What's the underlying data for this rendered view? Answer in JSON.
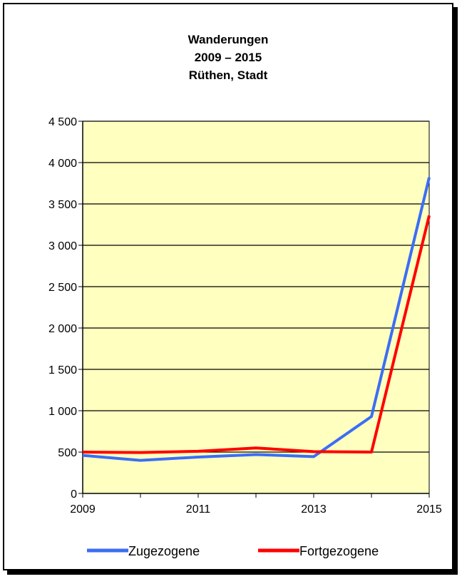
{
  "chart_data": {
    "type": "line",
    "title": [
      "Wanderungen",
      "2009 – 2015",
      "Rüthen, Stadt"
    ],
    "xlabel": "",
    "ylabel": "",
    "x": [
      2009,
      2010,
      2011,
      2012,
      2013,
      2014,
      2015
    ],
    "x_tick_labels": [
      "2009",
      "2011",
      "2013",
      "2015"
    ],
    "x_tick_values": [
      2009,
      2011,
      2013,
      2015
    ],
    "ylim": [
      0,
      4500
    ],
    "y_tick_values": [
      0,
      500,
      1000,
      1500,
      2000,
      2500,
      3000,
      3500,
      4000,
      4500
    ],
    "y_tick_labels": [
      "0",
      "500",
      "1 000",
      "1 500",
      "2 000",
      "2 500",
      "3 000",
      "3 500",
      "4 000",
      "4 500"
    ],
    "grid": "horizontal",
    "plot_background": "#ffffc0",
    "legend_position": "bottom",
    "series": [
      {
        "name": "Zugezogene",
        "color": "#3b6ef5",
        "values": [
          460,
          400,
          440,
          470,
          445,
          930,
          3820
        ]
      },
      {
        "name": "Fortgezogene",
        "color": "#ff0000",
        "values": [
          500,
          495,
          510,
          550,
          505,
          500,
          3360
        ]
      }
    ]
  }
}
